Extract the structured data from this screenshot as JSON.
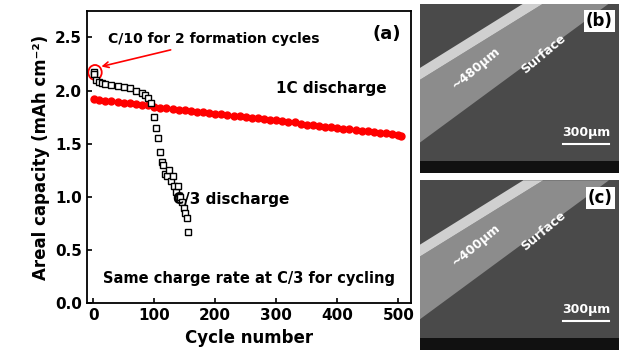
{
  "chart_data": {
    "type": "scatter",
    "x_label": "Cycle number",
    "y_label": "Areal capacity (mAh cm⁻²)",
    "annotations": [
      "(a)",
      "C/10 for 2 formation cycles",
      "1C discharge",
      "C/3 discharge",
      "Same charge rate at C/3 for cycling"
    ],
    "xlim": [
      -10,
      520
    ],
    "xticks": [
      0,
      100,
      200,
      300,
      400,
      500
    ],
    "ylim": [
      0.0,
      2.75
    ],
    "yticks": [
      0.0,
      0.5,
      1.0,
      1.5,
      2.0,
      2.5
    ],
    "grid": false,
    "series": [
      {
        "color": "#ff0000",
        "marker": "circle",
        "x": [
          1,
          10,
          20,
          30,
          40,
          50,
          60,
          70,
          80,
          90,
          100,
          110,
          120,
          130,
          140,
          150,
          160,
          170,
          180,
          190,
          200,
          210,
          220,
          230,
          240,
          250,
          260,
          270,
          280,
          290,
          300,
          310,
          320,
          330,
          340,
          350,
          360,
          370,
          380,
          390,
          400,
          410,
          420,
          430,
          440,
          450,
          460,
          470,
          480,
          490,
          500,
          505
        ],
        "values": [
          1.92,
          1.91,
          1.9,
          1.9,
          1.89,
          1.88,
          1.88,
          1.87,
          1.86,
          1.86,
          1.85,
          1.84,
          1.84,
          1.83,
          1.82,
          1.82,
          1.81,
          1.8,
          1.8,
          1.79,
          1.78,
          1.78,
          1.77,
          1.76,
          1.76,
          1.75,
          1.74,
          1.74,
          1.73,
          1.72,
          1.72,
          1.71,
          1.7,
          1.7,
          1.69,
          1.68,
          1.68,
          1.67,
          1.66,
          1.66,
          1.65,
          1.64,
          1.64,
          1.63,
          1.62,
          1.62,
          1.61,
          1.6,
          1.6,
          1.59,
          1.58,
          1.57
        ]
      },
      {
        "color": "#000000",
        "marker": "square",
        "x": [
          1,
          2,
          5,
          10,
          15,
          20,
          30,
          40,
          50,
          60,
          70,
          80,
          85,
          90,
          95,
          100,
          103,
          106,
          109,
          112,
          115,
          118,
          121,
          124,
          127,
          130,
          133,
          136,
          139,
          142,
          145,
          148,
          151,
          154,
          156
        ],
        "values": [
          2.17,
          2.16,
          2.1,
          2.08,
          2.07,
          2.06,
          2.05,
          2.04,
          2.03,
          2.02,
          2.0,
          1.98,
          1.96,
          1.93,
          1.88,
          1.75,
          1.65,
          1.55,
          1.42,
          1.33,
          1.3,
          1.22,
          1.2,
          1.25,
          1.15,
          1.2,
          1.1,
          1.05,
          1.1,
          1.0,
          0.95,
          0.9,
          0.85,
          0.8,
          0.67
        ]
      }
    ]
  },
  "images": [
    {
      "label": "(b)",
      "thickness": "~480μm",
      "surface": "Surface",
      "scale_bar": "300μm"
    },
    {
      "label": "(c)",
      "thickness": "~400μm",
      "surface": "Surface",
      "scale_bar": "300μm"
    }
  ]
}
